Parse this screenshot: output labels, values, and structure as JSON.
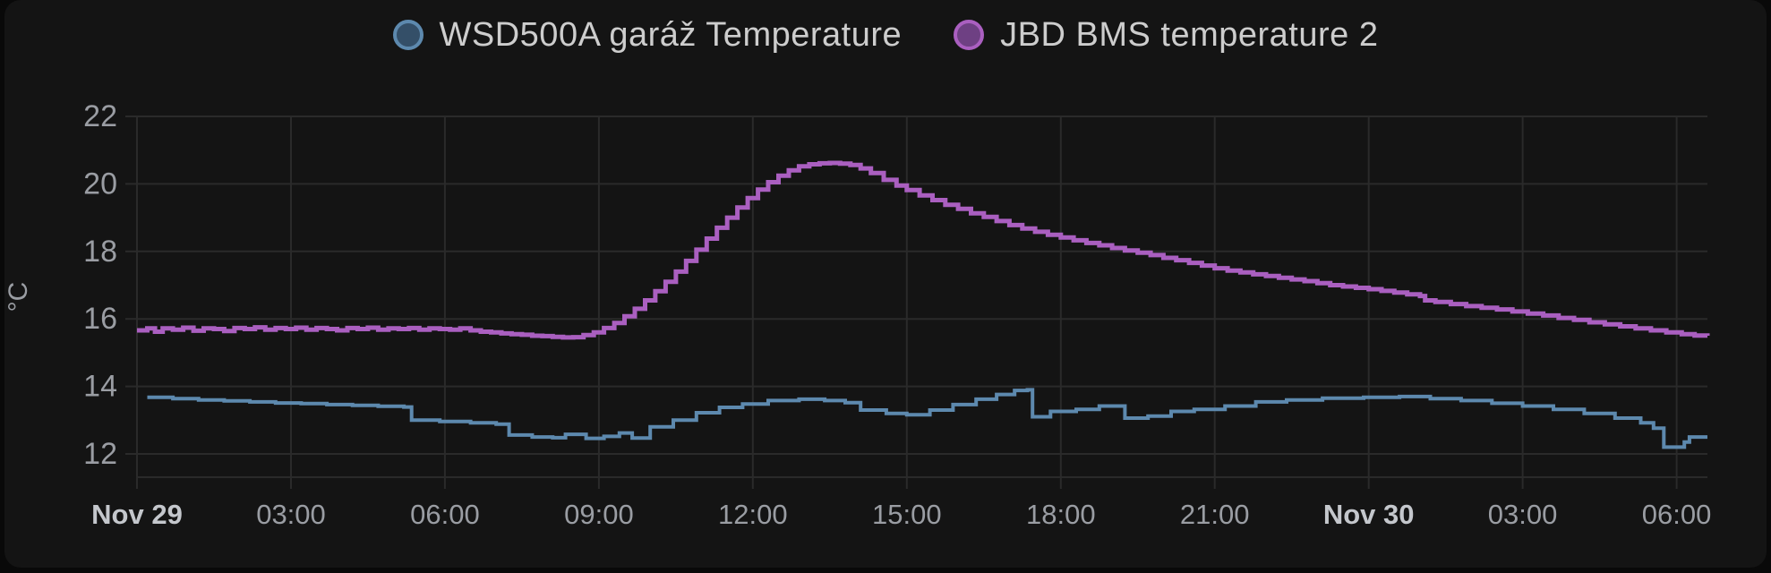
{
  "legend": {
    "items": [
      {
        "label": "WSD500A garáž Temperature"
      },
      {
        "label": "JBD BMS temperature 2"
      }
    ]
  },
  "chart_data": {
    "type": "line",
    "title": "",
    "ylabel": "°C",
    "xlabel": "",
    "grid": true,
    "legend_position": "top-center",
    "x_range_hours": [
      0,
      30.6
    ],
    "y_axis_range": [
      11.31,
      22
    ],
    "y_ticks": [
      12,
      14,
      16,
      18,
      20,
      22
    ],
    "x_ticks": [
      {
        "t": 0,
        "label": "Nov 29",
        "bold": true
      },
      {
        "t": 3,
        "label": "03:00",
        "bold": false
      },
      {
        "t": 6,
        "label": "06:00",
        "bold": false
      },
      {
        "t": 9,
        "label": "09:00",
        "bold": false
      },
      {
        "t": 12,
        "label": "12:00",
        "bold": false
      },
      {
        "t": 15,
        "label": "15:00",
        "bold": false
      },
      {
        "t": 18,
        "label": "18:00",
        "bold": false
      },
      {
        "t": 21,
        "label": "21:00",
        "bold": false
      },
      {
        "t": 24,
        "label": "Nov 30",
        "bold": true
      },
      {
        "t": 27,
        "label": "03:00",
        "bold": false
      },
      {
        "t": 30,
        "label": "06:00",
        "bold": false
      }
    ],
    "series": [
      {
        "name": "WSD500A garáž Temperature",
        "color": "#5d89ae",
        "legend_fill": "#344f68",
        "stroke_width": 4,
        "points": [
          [
            0.2,
            13.68
          ],
          [
            0.7,
            13.64
          ],
          [
            1.2,
            13.6
          ],
          [
            1.7,
            13.57
          ],
          [
            2.2,
            13.54
          ],
          [
            2.7,
            13.51
          ],
          [
            3.2,
            13.49
          ],
          [
            3.7,
            13.46
          ],
          [
            4.2,
            13.44
          ],
          [
            4.7,
            13.41
          ],
          [
            5.2,
            13.39
          ],
          [
            5.35,
            13.0
          ],
          [
            5.9,
            12.96
          ],
          [
            6.5,
            12.92
          ],
          [
            7.0,
            12.88
          ],
          [
            7.25,
            12.56
          ],
          [
            7.7,
            12.5
          ],
          [
            8.1,
            12.48
          ],
          [
            8.35,
            12.58
          ],
          [
            8.75,
            12.46
          ],
          [
            9.1,
            12.52
          ],
          [
            9.4,
            12.62
          ],
          [
            9.65,
            12.47
          ],
          [
            10.0,
            12.8
          ],
          [
            10.45,
            13.0
          ],
          [
            10.9,
            13.22
          ],
          [
            11.35,
            13.38
          ],
          [
            11.8,
            13.48
          ],
          [
            12.3,
            13.58
          ],
          [
            12.9,
            13.62
          ],
          [
            13.4,
            13.58
          ],
          [
            13.8,
            13.52
          ],
          [
            14.1,
            13.3
          ],
          [
            14.6,
            13.2
          ],
          [
            15.0,
            13.16
          ],
          [
            15.45,
            13.3
          ],
          [
            15.9,
            13.46
          ],
          [
            16.35,
            13.62
          ],
          [
            16.75,
            13.76
          ],
          [
            17.1,
            13.88
          ],
          [
            17.35,
            13.9
          ],
          [
            17.45,
            13.1
          ],
          [
            17.8,
            13.26
          ],
          [
            18.3,
            13.32
          ],
          [
            18.75,
            13.42
          ],
          [
            19.25,
            13.06
          ],
          [
            19.7,
            13.12
          ],
          [
            20.15,
            13.26
          ],
          [
            20.6,
            13.32
          ],
          [
            21.2,
            13.42
          ],
          [
            21.8,
            13.54
          ],
          [
            22.4,
            13.6
          ],
          [
            23.1,
            13.65
          ],
          [
            23.9,
            13.68
          ],
          [
            24.6,
            13.7
          ],
          [
            25.2,
            13.64
          ],
          [
            25.8,
            13.58
          ],
          [
            26.4,
            13.5
          ],
          [
            27.0,
            13.42
          ],
          [
            27.6,
            13.32
          ],
          [
            28.2,
            13.2
          ],
          [
            28.8,
            13.06
          ],
          [
            29.3,
            12.92
          ],
          [
            29.55,
            12.76
          ],
          [
            29.75,
            12.2
          ],
          [
            30.15,
            12.35
          ],
          [
            30.25,
            12.5
          ],
          [
            30.6,
            12.5
          ]
        ]
      },
      {
        "name": "JBD BMS temperature 2",
        "color": "#aa5fc0",
        "legend_fill": "#6e4083",
        "stroke_width": 5,
        "points": [
          [
            0,
            15.66
          ],
          [
            0.2,
            15.72
          ],
          [
            0.35,
            15.62
          ],
          [
            0.5,
            15.72
          ],
          [
            0.7,
            15.68
          ],
          [
            0.9,
            15.74
          ],
          [
            1.1,
            15.65
          ],
          [
            1.3,
            15.72
          ],
          [
            1.5,
            15.7
          ],
          [
            1.7,
            15.64
          ],
          [
            1.9,
            15.73
          ],
          [
            2.1,
            15.7
          ],
          [
            2.3,
            15.75
          ],
          [
            2.5,
            15.68
          ],
          [
            2.7,
            15.73
          ],
          [
            2.9,
            15.7
          ],
          [
            3.1,
            15.74
          ],
          [
            3.3,
            15.68
          ],
          [
            3.5,
            15.73
          ],
          [
            3.7,
            15.7
          ],
          [
            3.9,
            15.66
          ],
          [
            4.1,
            15.73
          ],
          [
            4.3,
            15.7
          ],
          [
            4.5,
            15.74
          ],
          [
            4.7,
            15.68
          ],
          [
            4.9,
            15.72
          ],
          [
            5.1,
            15.7
          ],
          [
            5.3,
            15.73
          ],
          [
            5.5,
            15.68
          ],
          [
            5.7,
            15.72
          ],
          [
            5.9,
            15.7
          ],
          [
            6.1,
            15.68
          ],
          [
            6.3,
            15.72
          ],
          [
            6.5,
            15.66
          ],
          [
            6.7,
            15.62
          ],
          [
            6.9,
            15.6
          ],
          [
            7.1,
            15.57
          ],
          [
            7.3,
            15.55
          ],
          [
            7.5,
            15.53
          ],
          [
            7.7,
            15.5
          ],
          [
            7.9,
            15.49
          ],
          [
            8.1,
            15.47
          ],
          [
            8.3,
            15.45
          ],
          [
            8.5,
            15.46
          ],
          [
            8.7,
            15.52
          ],
          [
            8.9,
            15.6
          ],
          [
            9.1,
            15.73
          ],
          [
            9.3,
            15.88
          ],
          [
            9.5,
            16.08
          ],
          [
            9.7,
            16.3
          ],
          [
            9.9,
            16.55
          ],
          [
            10.1,
            16.82
          ],
          [
            10.3,
            17.1
          ],
          [
            10.5,
            17.4
          ],
          [
            10.7,
            17.72
          ],
          [
            10.9,
            18.05
          ],
          [
            11.1,
            18.38
          ],
          [
            11.3,
            18.7
          ],
          [
            11.5,
            19.0
          ],
          [
            11.7,
            19.3
          ],
          [
            11.9,
            19.58
          ],
          [
            12.1,
            19.83
          ],
          [
            12.3,
            20.05
          ],
          [
            12.5,
            20.24
          ],
          [
            12.7,
            20.4
          ],
          [
            12.9,
            20.52
          ],
          [
            13.1,
            20.58
          ],
          [
            13.3,
            20.61
          ],
          [
            13.5,
            20.62
          ],
          [
            13.7,
            20.6
          ],
          [
            13.9,
            20.56
          ],
          [
            14.1,
            20.46
          ],
          [
            14.3,
            20.32
          ],
          [
            14.55,
            20.12
          ],
          [
            14.8,
            19.95
          ],
          [
            15.0,
            19.82
          ],
          [
            15.25,
            19.66
          ],
          [
            15.5,
            19.52
          ],
          [
            15.75,
            19.38
          ],
          [
            16.0,
            19.26
          ],
          [
            16.25,
            19.13
          ],
          [
            16.5,
            19.02
          ],
          [
            16.75,
            18.9
          ],
          [
            17.0,
            18.78
          ],
          [
            17.25,
            18.68
          ],
          [
            17.5,
            18.58
          ],
          [
            17.75,
            18.49
          ],
          [
            18.0,
            18.41
          ],
          [
            18.25,
            18.33
          ],
          [
            18.5,
            18.25
          ],
          [
            18.75,
            18.18
          ],
          [
            19.0,
            18.1
          ],
          [
            19.25,
            18.03
          ],
          [
            19.5,
            17.96
          ],
          [
            19.75,
            17.89
          ],
          [
            20.0,
            17.81
          ],
          [
            20.25,
            17.74
          ],
          [
            20.5,
            17.66
          ],
          [
            20.75,
            17.58
          ],
          [
            21.0,
            17.5
          ],
          [
            21.25,
            17.43
          ],
          [
            21.5,
            17.38
          ],
          [
            21.75,
            17.32
          ],
          [
            22.0,
            17.27
          ],
          [
            22.25,
            17.22
          ],
          [
            22.5,
            17.17
          ],
          [
            22.75,
            17.12
          ],
          [
            23.0,
            17.06
          ],
          [
            23.25,
            17.0
          ],
          [
            23.5,
            16.96
          ],
          [
            23.75,
            16.92
          ],
          [
            24.0,
            16.88
          ],
          [
            24.25,
            16.83
          ],
          [
            24.5,
            16.78
          ],
          [
            24.75,
            16.73
          ],
          [
            25.0,
            16.68
          ],
          [
            25.1,
            16.55
          ],
          [
            25.3,
            16.5
          ],
          [
            25.6,
            16.44
          ],
          [
            25.9,
            16.38
          ],
          [
            26.2,
            16.33
          ],
          [
            26.5,
            16.28
          ],
          [
            26.8,
            16.22
          ],
          [
            27.1,
            16.16
          ],
          [
            27.4,
            16.1
          ],
          [
            27.7,
            16.03
          ],
          [
            28.0,
            15.97
          ],
          [
            28.3,
            15.9
          ],
          [
            28.6,
            15.84
          ],
          [
            28.9,
            15.78
          ],
          [
            29.2,
            15.72
          ],
          [
            29.5,
            15.66
          ],
          [
            29.8,
            15.6
          ],
          [
            30.1,
            15.55
          ],
          [
            30.35,
            15.51
          ],
          [
            30.6,
            15.5
          ]
        ]
      }
    ],
    "colors": {
      "panel_background": "#141414",
      "page_background": "#090909",
      "grid": "#2a2a2a",
      "tick_text": "#9a9da3",
      "date_tick_text": "#c4c7cc",
      "legend_text": "#cdcdcd"
    }
  }
}
